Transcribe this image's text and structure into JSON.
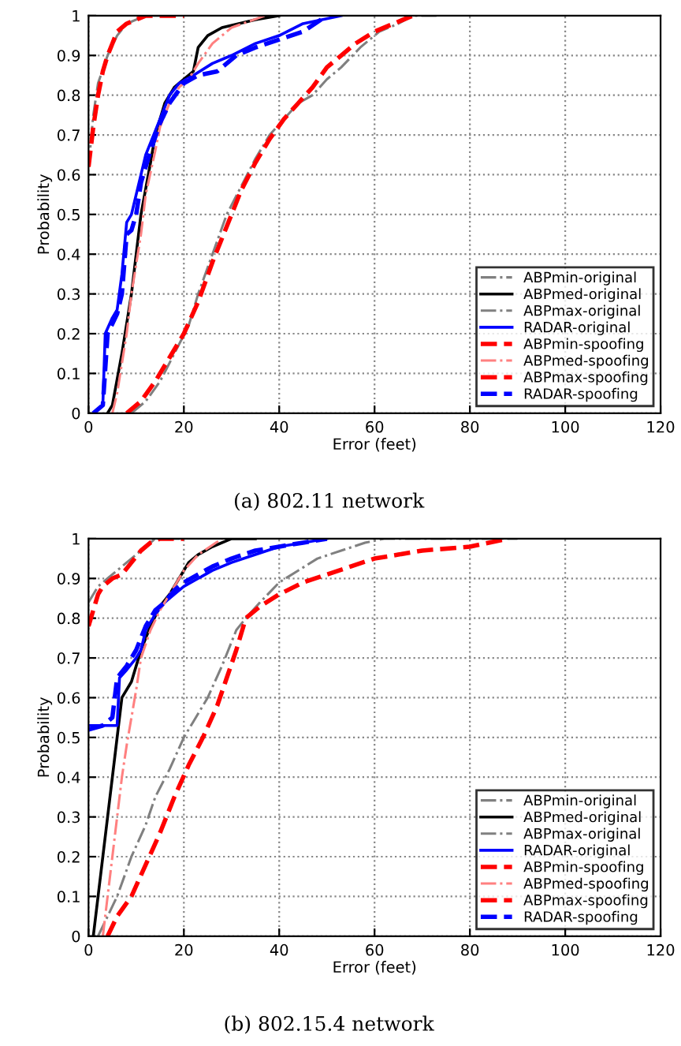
{
  "chart_data": [
    {
      "type": "line",
      "xlabel": "Error (feet)",
      "ylabel": "Probability",
      "annotations": [
        "(a) 802.11 network"
      ],
      "xlim": [
        0,
        120
      ],
      "xticks": [
        0,
        20,
        40,
        60,
        80,
        100,
        120
      ],
      "ylim": [
        0,
        1
      ],
      "yticks": [
        0,
        0.1,
        0.2,
        0.3,
        0.4,
        0.5,
        0.6,
        0.7,
        0.8,
        0.9,
        1
      ],
      "grid": true,
      "legend": "bottom right",
      "series": [
        {
          "name": "ABPmin-original",
          "color": "#808080",
          "line_style": "dashdot",
          "x": [
            0,
            1,
            2,
            4,
            6,
            8,
            10,
            12,
            16
          ],
          "values": [
            0.62,
            0.75,
            0.83,
            0.9,
            0.95,
            0.98,
            0.99,
            1,
            1
          ]
        },
        {
          "name": "ABPmed-original",
          "color": "#000000",
          "line_style": "solid",
          "x": [
            4,
            5,
            7,
            9,
            10,
            11,
            13,
            14,
            16,
            18,
            20,
            22,
            23,
            25,
            28,
            35,
            40
          ],
          "values": [
            0,
            0.02,
            0.15,
            0.3,
            0.4,
            0.5,
            0.63,
            0.7,
            0.78,
            0.82,
            0.84,
            0.86,
            0.92,
            0.95,
            0.97,
            0.99,
            1
          ]
        },
        {
          "name": "ABPmax-original",
          "color": "#808080",
          "line_style": "dashdot",
          "x": [
            9,
            12,
            15,
            18,
            21,
            23,
            26,
            29,
            32,
            35,
            38,
            41,
            44,
            47,
            50,
            53,
            57,
            61,
            65,
            68,
            73
          ],
          "values": [
            0,
            0.03,
            0.08,
            0.15,
            0.22,
            0.3,
            0.4,
            0.5,
            0.57,
            0.64,
            0.7,
            0.74,
            0.78,
            0.8,
            0.84,
            0.87,
            0.92,
            0.96,
            0.98,
            1,
            1
          ]
        },
        {
          "name": "RADAR-original",
          "color": "#0000ff",
          "line_style": "solid",
          "x": [
            1,
            3,
            3.5,
            5,
            6,
            7,
            8,
            9,
            10,
            11,
            12,
            13,
            15,
            17,
            19,
            22,
            26,
            30,
            35,
            40,
            45,
            53
          ],
          "values": [
            0,
            0.02,
            0.2,
            0.24,
            0.26,
            0.35,
            0.48,
            0.5,
            0.55,
            0.6,
            0.65,
            0.68,
            0.74,
            0.8,
            0.83,
            0.85,
            0.88,
            0.9,
            0.93,
            0.95,
            0.98,
            1
          ]
        },
        {
          "name": "ABPmin-spoofing",
          "color": "#ff0000",
          "line_style": "dashed",
          "x": [
            0,
            1,
            2,
            3,
            4,
            5,
            6,
            8,
            10,
            12,
            20
          ],
          "values": [
            0.62,
            0.72,
            0.8,
            0.86,
            0.9,
            0.93,
            0.96,
            0.98,
            0.99,
            1,
            1
          ]
        },
        {
          "name": "ABPmed-spoofing",
          "color": "#ff8080",
          "line_style": "dashdot",
          "x": [
            5,
            6,
            8,
            9,
            11,
            12,
            14,
            15,
            17,
            19,
            21,
            23,
            26,
            30,
            37
          ],
          "values": [
            0,
            0.05,
            0.2,
            0.3,
            0.45,
            0.55,
            0.66,
            0.72,
            0.78,
            0.82,
            0.84,
            0.88,
            0.93,
            0.97,
            1
          ]
        },
        {
          "name": "ABPmax-spoofing",
          "color": "#ff0000",
          "line_style": "dashed",
          "x": [
            8,
            11,
            14,
            17,
            20,
            23,
            26,
            29,
            32,
            35,
            38,
            41,
            44,
            47,
            50,
            53,
            56,
            60,
            64,
            68
          ],
          "values": [
            0,
            0.03,
            0.08,
            0.14,
            0.2,
            0.28,
            0.38,
            0.47,
            0.56,
            0.63,
            0.69,
            0.74,
            0.78,
            0.82,
            0.87,
            0.9,
            0.93,
            0.96,
            0.98,
            1
          ]
        },
        {
          "name": "RADAR-spoofing",
          "color": "#0000ff",
          "line_style": "dashed",
          "x": [
            1,
            3,
            4,
            6,
            7,
            8,
            9,
            10,
            11,
            13,
            15,
            17,
            20,
            23,
            27,
            31,
            35,
            40,
            45,
            50
          ],
          "values": [
            0,
            0.02,
            0.2,
            0.25,
            0.3,
            0.45,
            0.46,
            0.5,
            0.58,
            0.66,
            0.73,
            0.78,
            0.83,
            0.85,
            0.86,
            0.9,
            0.92,
            0.94,
            0.96,
            1
          ]
        }
      ]
    },
    {
      "type": "line",
      "xlabel": "Error (feet)",
      "ylabel": "Probability",
      "annotations": [
        "(b) 802.15.4 network"
      ],
      "xlim": [
        0,
        120
      ],
      "xticks": [
        0,
        20,
        40,
        60,
        80,
        100,
        120
      ],
      "ylim": [
        0,
        1
      ],
      "yticks": [
        0,
        0.1,
        0.2,
        0.3,
        0.4,
        0.5,
        0.6,
        0.7,
        0.8,
        0.9,
        1
      ],
      "grid": true,
      "legend": "bottom right",
      "series": [
        {
          "name": "ABPmin-original",
          "color": "#808080",
          "line_style": "dashdot",
          "x": [
            0,
            1,
            2,
            4,
            6,
            9,
            12,
            14,
            20
          ],
          "values": [
            0.84,
            0.86,
            0.88,
            0.9,
            0.92,
            0.95,
            0.98,
            1,
            1
          ]
        },
        {
          "name": "ABPmed-original",
          "color": "#000000",
          "line_style": "solid",
          "x": [
            1,
            2,
            3,
            4,
            5,
            6,
            7,
            8,
            9,
            10,
            11,
            13,
            15,
            17,
            19,
            21,
            23,
            26,
            30,
            35
          ],
          "values": [
            0,
            0.1,
            0.2,
            0.3,
            0.4,
            0.5,
            0.6,
            0.62,
            0.64,
            0.68,
            0.72,
            0.78,
            0.83,
            0.86,
            0.9,
            0.94,
            0.96,
            0.98,
            1,
            1
          ]
        },
        {
          "name": "ABPmax-original",
          "color": "#808080",
          "line_style": "dashdot",
          "x": [
            2,
            4,
            6,
            9,
            12,
            14,
            17,
            20,
            22,
            25,
            28,
            31,
            33,
            36,
            40,
            44,
            48,
            53,
            58,
            62,
            70,
            80,
            90
          ],
          "values": [
            0,
            0.05,
            0.1,
            0.2,
            0.28,
            0.35,
            0.42,
            0.5,
            0.54,
            0.6,
            0.68,
            0.77,
            0.8,
            0.84,
            0.89,
            0.92,
            0.95,
            0.97,
            0.99,
            1,
            1,
            1,
            1
          ]
        },
        {
          "name": "RADAR-original",
          "color": "#0000ff",
          "line_style": "solid",
          "x": [
            0,
            3,
            6,
            6.5,
            8,
            10,
            11,
            12,
            14,
            16,
            18,
            20,
            23,
            26,
            30,
            35,
            40,
            45,
            50
          ],
          "values": [
            0.53,
            0.53,
            0.53,
            0.65,
            0.67,
            0.7,
            0.72,
            0.77,
            0.81,
            0.84,
            0.86,
            0.88,
            0.9,
            0.92,
            0.94,
            0.96,
            0.98,
            0.99,
            1
          ]
        },
        {
          "name": "ABPmin-spoofing",
          "color": "#ff0000",
          "line_style": "dashed",
          "x": [
            0,
            1,
            2,
            3,
            5,
            7,
            9,
            11,
            13,
            15,
            20
          ],
          "values": [
            0.78,
            0.82,
            0.86,
            0.88,
            0.9,
            0.91,
            0.94,
            0.97,
            0.99,
            1,
            1
          ]
        },
        {
          "name": "ABPmed-spoofing",
          "color": "#ff8080",
          "line_style": "dashdot",
          "x": [
            3,
            4,
            5,
            6,
            7,
            8,
            9,
            10,
            11,
            13,
            15,
            17,
            20,
            23,
            28
          ],
          "values": [
            0,
            0.1,
            0.2,
            0.3,
            0.4,
            0.48,
            0.55,
            0.62,
            0.7,
            0.77,
            0.82,
            0.86,
            0.92,
            0.96,
            1
          ]
        },
        {
          "name": "ABPmax-spoofing",
          "color": "#ff0000",
          "line_style": "dashed",
          "x": [
            4,
            6,
            9,
            12,
            15,
            18,
            21,
            24,
            27,
            29,
            31,
            33,
            36,
            40,
            45,
            50,
            55,
            60,
            65,
            70,
            80,
            88
          ],
          "values": [
            0,
            0.05,
            0.1,
            0.18,
            0.26,
            0.35,
            0.43,
            0.5,
            0.58,
            0.65,
            0.72,
            0.8,
            0.83,
            0.86,
            0.89,
            0.91,
            0.93,
            0.95,
            0.96,
            0.97,
            0.98,
            1
          ]
        },
        {
          "name": "RADAR-spoofing",
          "color": "#0000ff",
          "line_style": "dashed",
          "x": [
            0,
            3,
            5,
            6,
            8,
            10,
            12,
            14,
            16,
            18,
            20,
            23,
            26,
            30,
            35,
            40,
            45,
            50
          ],
          "values": [
            0.52,
            0.53,
            0.55,
            0.65,
            0.68,
            0.72,
            0.78,
            0.82,
            0.84,
            0.87,
            0.89,
            0.91,
            0.93,
            0.95,
            0.97,
            0.98,
            0.99,
            1
          ]
        }
      ]
    }
  ]
}
